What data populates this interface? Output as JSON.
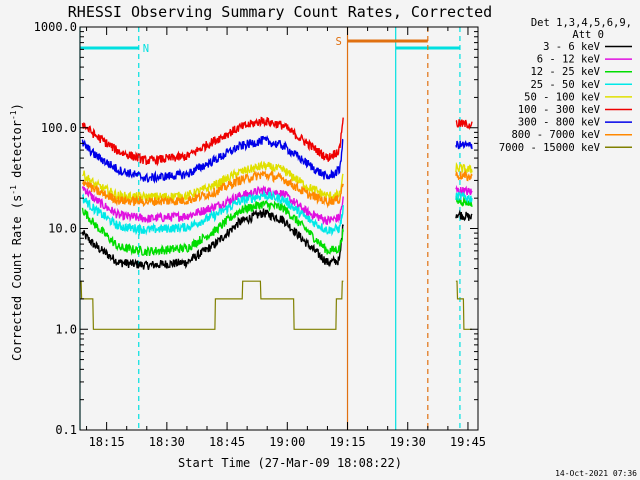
{
  "chart_data": {
    "type": "line",
    "title": "RHESSI Observing Summary Count Rates, Corrected",
    "xlabel": "Start Time (27-Mar-09 18:08:22)",
    "ylabel_parts": [
      "Corrected Count Rate (s",
      "-1",
      " detector",
      "-1",
      ")"
    ],
    "yscale": "log",
    "ylim": [
      0.1,
      1000
    ],
    "xlim": [
      "18:08:22",
      "19:47:30"
    ],
    "x_ticks": [
      "18:15",
      "18:30",
      "18:45",
      "19:00",
      "19:15",
      "19:30",
      "19:45"
    ],
    "y_ticks": [
      "0.1",
      "1.0",
      "10.0",
      "100.0",
      "1000.0"
    ],
    "legend_header": [
      "Det 1,3,4,5,6,9,",
      "Att 0"
    ],
    "legend_position": "outside-right-top",
    "series": [
      {
        "name": "3 - 6 keV",
        "color": "#000000",
        "points": [
          [
            "18:09",
            9.0
          ],
          [
            "18:12",
            6.8
          ],
          [
            "18:18",
            4.6
          ],
          [
            "18:25",
            4.3
          ],
          [
            "18:35",
            4.6
          ],
          [
            "18:42",
            7.0
          ],
          [
            "18:48",
            11.5
          ],
          [
            "18:54",
            14.3
          ],
          [
            "18:59",
            12.2
          ],
          [
            "19:05",
            7.0
          ],
          [
            "19:10",
            4.6
          ],
          [
            "19:13",
            4.8
          ],
          [
            "19:14",
            12.0
          ]
        ],
        "after_gap": [
          [
            "19:42",
            14.0
          ],
          [
            "19:46",
            12.8
          ]
        ]
      },
      {
        "name": "6 - 12 keV",
        "color": "#e010e0",
        "points": [
          [
            "18:09",
            26.0
          ],
          [
            "18:12",
            19.5
          ],
          [
            "18:18",
            13.5
          ],
          [
            "18:25",
            12.5
          ],
          [
            "18:35",
            13.3
          ],
          [
            "18:42",
            16.5
          ],
          [
            "18:48",
            21.0
          ],
          [
            "18:54",
            24.0
          ],
          [
            "18:59",
            22.0
          ],
          [
            "19:05",
            14.5
          ],
          [
            "19:10",
            12.0
          ],
          [
            "19:13",
            12.8
          ],
          [
            "19:14",
            20.0
          ]
        ],
        "after_gap": [
          [
            "19:42",
            24.0
          ],
          [
            "19:46",
            23.0
          ]
        ]
      },
      {
        "name": "12 - 25 keV",
        "color": "#00dd00",
        "points": [
          [
            "18:09",
            15.5
          ],
          [
            "18:12",
            11.0
          ],
          [
            "18:18",
            6.5
          ],
          [
            "18:25",
            5.9
          ],
          [
            "18:35",
            6.4
          ],
          [
            "18:42",
            9.5
          ],
          [
            "18:48",
            15.0
          ],
          [
            "18:54",
            17.5
          ],
          [
            "18:59",
            16.0
          ],
          [
            "19:05",
            9.5
          ],
          [
            "19:10",
            6.0
          ],
          [
            "19:13",
            6.3
          ],
          [
            "19:14",
            10.0
          ]
        ],
        "after_gap": [
          [
            "19:42",
            19.0
          ],
          [
            "19:46",
            18.0
          ]
        ]
      },
      {
        "name": "25 - 50 keV",
        "color": "#00e8e8",
        "points": [
          [
            "18:09",
            20.0
          ],
          [
            "18:12",
            15.5
          ],
          [
            "18:18",
            10.5
          ],
          [
            "18:25",
            9.7
          ],
          [
            "18:35",
            10.3
          ],
          [
            "18:42",
            13.5
          ],
          [
            "18:48",
            18.5
          ],
          [
            "18:54",
            21.5
          ],
          [
            "18:59",
            19.5
          ],
          [
            "19:05",
            12.5
          ],
          [
            "19:10",
            9.6
          ],
          [
            "19:13",
            10.0
          ],
          [
            "19:14",
            16.0
          ]
        ],
        "after_gap": [
          [
            "19:42",
            21.0
          ],
          [
            "19:46",
            20.0
          ]
        ]
      },
      {
        "name": "50 - 100 keV",
        "color": "#e0e000",
        "points": [
          [
            "18:09",
            35.0
          ],
          [
            "18:12",
            27.5
          ],
          [
            "18:18",
            21.0
          ],
          [
            "18:25",
            20.5
          ],
          [
            "18:35",
            21.0
          ],
          [
            "18:42",
            27.0
          ],
          [
            "18:48",
            36.0
          ],
          [
            "18:54",
            42.0
          ],
          [
            "18:59",
            38.0
          ],
          [
            "19:05",
            26.0
          ],
          [
            "19:10",
            21.0
          ],
          [
            "19:13",
            21.5
          ],
          [
            "19:14",
            34.0
          ]
        ],
        "after_gap": [
          [
            "19:42",
            40.0
          ],
          [
            "19:46",
            38.0
          ]
        ]
      },
      {
        "name": "100 - 300 keV",
        "color": "#ee0000",
        "points": [
          [
            "18:09",
            110.0
          ],
          [
            "18:12",
            85.0
          ],
          [
            "18:18",
            58.0
          ],
          [
            "18:25",
            47.0
          ],
          [
            "18:35",
            52.0
          ],
          [
            "18:42",
            75.0
          ],
          [
            "18:48",
            100.0
          ],
          [
            "18:54",
            118.0
          ],
          [
            "18:59",
            105.0
          ],
          [
            "19:05",
            70.0
          ],
          [
            "19:10",
            50.0
          ],
          [
            "19:13",
            60.0
          ],
          [
            "19:14",
            140.0
          ]
        ],
        "after_gap": [
          [
            "19:42",
            110.0
          ],
          [
            "19:46",
            108.0
          ]
        ]
      },
      {
        "name": "300 - 800 keV",
        "color": "#0000e8",
        "points": [
          [
            "18:09",
            70.0
          ],
          [
            "18:12",
            54.0
          ],
          [
            "18:18",
            38.0
          ],
          [
            "18:25",
            31.5
          ],
          [
            "18:35",
            34.5
          ],
          [
            "18:42",
            48.0
          ],
          [
            "18:48",
            65.0
          ],
          [
            "18:54",
            75.0
          ],
          [
            "18:59",
            66.0
          ],
          [
            "19:05",
            44.0
          ],
          [
            "19:10",
            32.0
          ],
          [
            "19:13",
            38.0
          ],
          [
            "19:14",
            80.0
          ]
        ],
        "after_gap": [
          [
            "19:42",
            68.0
          ],
          [
            "19:46",
            66.0
          ]
        ]
      },
      {
        "name": "800 - 7000 keV",
        "color": "#ff8800",
        "points": [
          [
            "18:09",
            30.0
          ],
          [
            "18:12",
            24.0
          ],
          [
            "18:18",
            19.0
          ],
          [
            "18:25",
            18.5
          ],
          [
            "18:35",
            19.0
          ],
          [
            "18:42",
            23.0
          ],
          [
            "18:48",
            30.0
          ],
          [
            "18:54",
            34.5
          ],
          [
            "18:59",
            31.0
          ],
          [
            "19:05",
            22.0
          ],
          [
            "19:10",
            18.5
          ],
          [
            "19:13",
            19.5
          ],
          [
            "19:14",
            30.0
          ]
        ],
        "after_gap": [
          [
            "19:42",
            34.0
          ],
          [
            "19:46",
            32.0
          ]
        ]
      },
      {
        "name": "7000 - 15000 keV",
        "color": "#808000",
        "points": [
          [
            "18:08:30",
            3.0
          ],
          [
            "18:09",
            2.0
          ],
          [
            "18:11",
            2.0
          ],
          [
            "18:13",
            1.0
          ],
          [
            "18:40",
            1.0
          ],
          [
            "18:43",
            2.0
          ],
          [
            "18:48",
            2.5
          ],
          [
            "18:52",
            3.0
          ],
          [
            "18:56",
            2.0
          ],
          [
            "19:00",
            2.0
          ],
          [
            "19:05",
            1.0
          ],
          [
            "19:08",
            1.0
          ],
          [
            "19:12",
            1.5
          ],
          [
            "19:14",
            3.0
          ]
        ],
        "after_gap": [
          [
            "19:42",
            3.0
          ],
          [
            "19:43",
            2.0
          ],
          [
            "19:46",
            1.0
          ]
        ]
      }
    ],
    "markers": [
      {
        "label": "N",
        "color": "#00e0e0",
        "bar_start": "18:08:22",
        "bar_end": "18:23",
        "label_at": "18:24",
        "line_at": "18:23",
        "line_style": "dashed"
      },
      {
        "label": "N",
        "color": "#00e0e0",
        "bar_start": "19:27",
        "bar_end": "19:43",
        "line_at": "19:27",
        "line_style": "solid"
      },
      {
        "label": "N",
        "color": "#00e0e0",
        "line_at": "19:43",
        "line_style": "dashed"
      },
      {
        "label": "S",
        "color": "#e07010",
        "bar_start": "19:15",
        "bar_end": "19:35",
        "label_at": "19:12",
        "line_at": "19:15",
        "line_style": "solid"
      },
      {
        "label": "S",
        "color": "#e07010",
        "line_at": "19:35",
        "line_style": "dashed"
      },
      {
        "label": "N",
        "color": "#00e0e0",
        "line_at": "18:08:22",
        "line_style": "solid"
      }
    ],
    "timestamp": "14-Oct-2021 07:36"
  }
}
